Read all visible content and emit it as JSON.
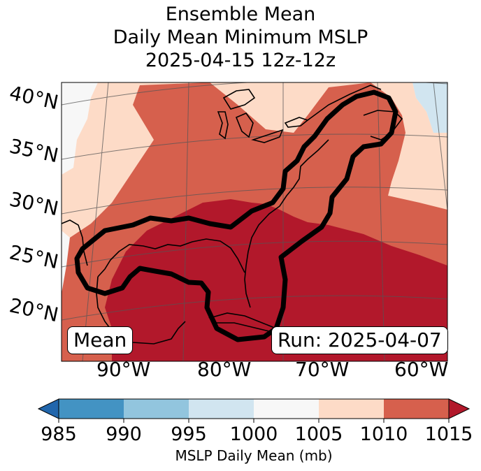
{
  "title": {
    "line1": "Ensemble Mean",
    "line2": "Daily Mean Minimum MSLP",
    "line3": "2025-04-15 12z-12z"
  },
  "map": {
    "lat_labels": [
      "40°N",
      "35°N",
      "30°N",
      "25°N",
      "20°N"
    ],
    "lon_labels": [
      "90°W",
      "80°W",
      "70°W",
      "60°W"
    ],
    "mean_label": "Mean",
    "run_label": "Run: 2025-04-07"
  },
  "colorbar": {
    "label": "MSLP Daily Mean (mb)",
    "ticks": [
      "985",
      "990",
      "995",
      "1000",
      "1005",
      "1010",
      "1015"
    ],
    "colors": {
      "under": "#2166ac",
      "c985_990": "#4393c3",
      "c990_995": "#92c5de",
      "c995_1000": "#d1e5f0",
      "c1000_1005": "#f7f7f7",
      "c1005_1010": "#fddbc7",
      "c1010_1015": "#d6604d",
      "over": "#b2182b"
    }
  }
}
